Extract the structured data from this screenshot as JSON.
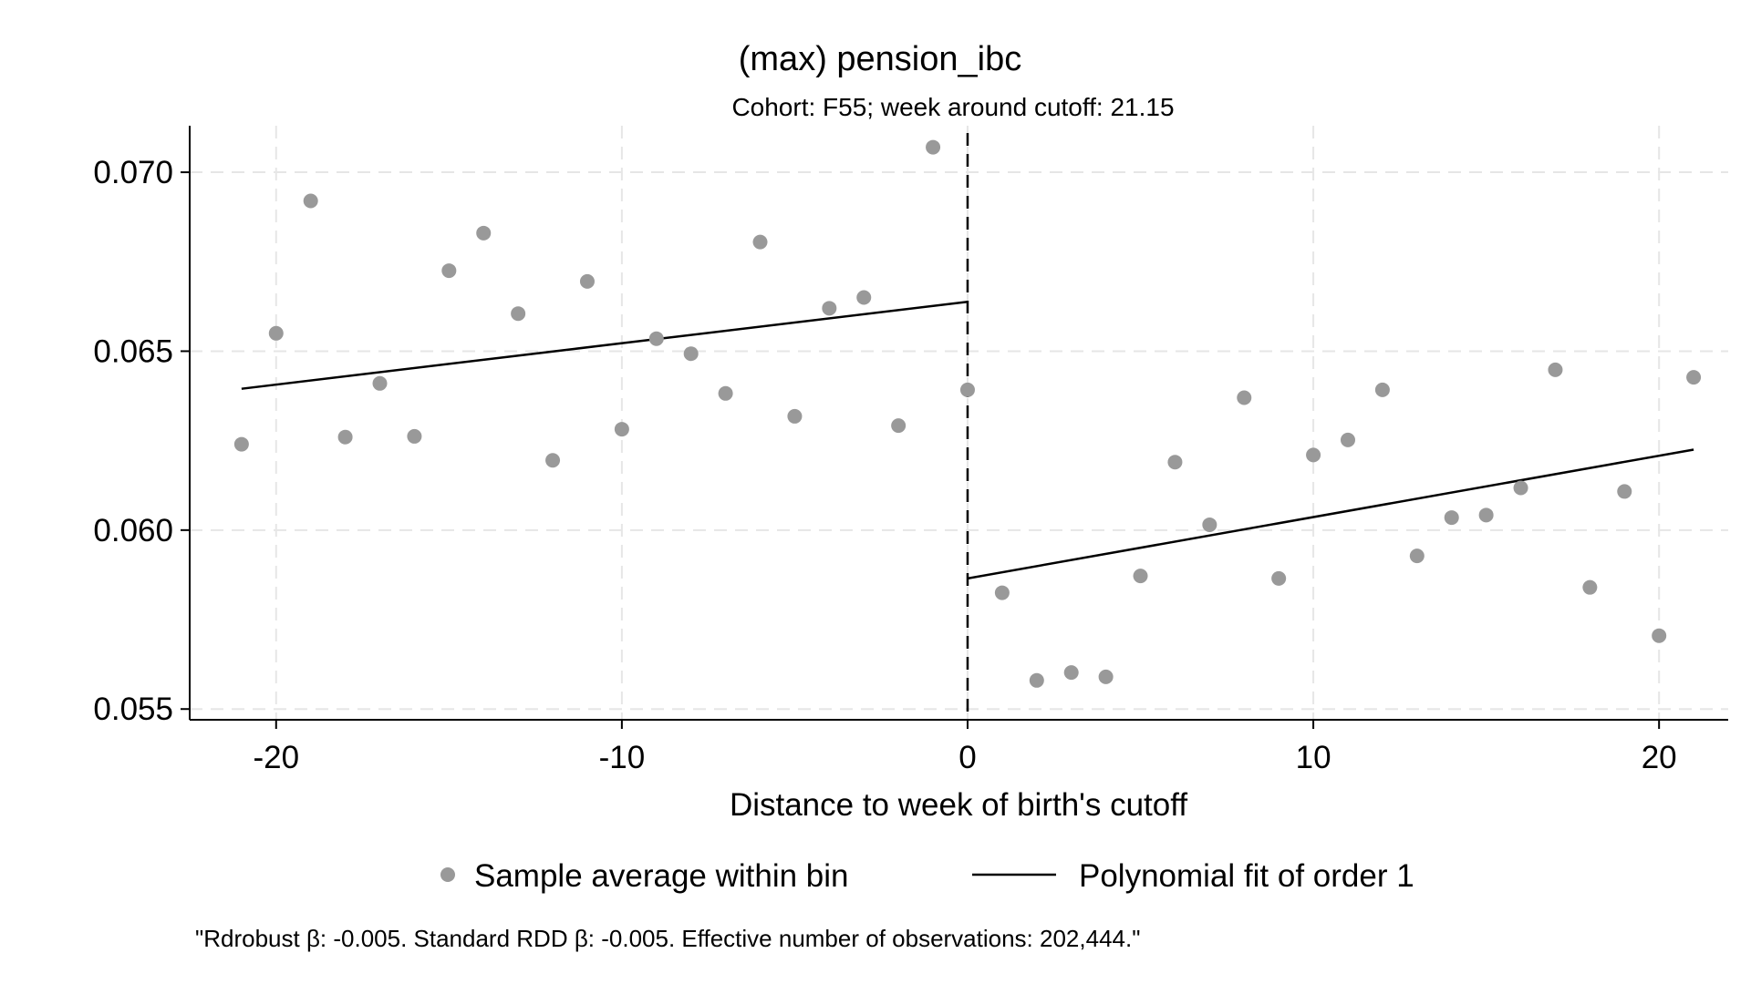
{
  "chart_data": {
    "type": "scatter",
    "title": "(max) pension_ibc",
    "subtitle": "Cohort: F55; week around cutoff: 21.15",
    "xlabel": "Distance to week of birth's cutoff",
    "ylabel": "",
    "xlim": [
      -22.5,
      22
    ],
    "ylim": [
      0.0547,
      0.0713
    ],
    "xticks": [
      -20,
      -10,
      0,
      10,
      20
    ],
    "xtick_labels": [
      "-20",
      "-10",
      "0",
      "10",
      "20"
    ],
    "yticks": [
      0.055,
      0.06,
      0.065,
      0.07
    ],
    "ytick_labels": [
      "0.055",
      "0.060",
      "0.065",
      "0.070"
    ],
    "grid": true,
    "cutoff_x": 0,
    "legend_position": "bottom",
    "series": [
      {
        "name": "Sample average within bin",
        "kind": "scatter",
        "color": "#999999",
        "x": [
          -21,
          -20,
          -19,
          -18,
          -17,
          -16,
          -15,
          -14,
          -13,
          -12,
          -11,
          -10,
          -9,
          -8,
          -7,
          -6,
          -5,
          -4,
          -3,
          -2,
          -1,
          0,
          1,
          2,
          3,
          4,
          5,
          6,
          7,
          8,
          9,
          10,
          11,
          12,
          13,
          14,
          15,
          16,
          17,
          18,
          19,
          20,
          21
        ],
        "y": [
          0.0624,
          0.0655,
          0.0692,
          0.0626,
          0.0641,
          0.06262,
          0.06725,
          0.0683,
          0.06605,
          0.06195,
          0.06695,
          0.06282,
          0.06535,
          0.06493,
          0.06382,
          0.06805,
          0.06318,
          0.0662,
          0.0665,
          0.06292,
          0.0707,
          0.06392,
          0.05825,
          0.0558,
          0.05602,
          0.0559,
          0.05872,
          0.0619,
          0.06015,
          0.0637,
          0.05865,
          0.0621,
          0.06252,
          0.06392,
          0.05928,
          0.06035,
          0.06042,
          0.06118,
          0.06448,
          0.0584,
          0.06108,
          0.05705,
          0.06427
        ]
      },
      {
        "name": "Polynomial fit of order 1",
        "kind": "line",
        "color": "#000000",
        "segments": [
          {
            "x": [
              -21,
              0
            ],
            "y": [
              0.06395,
              0.06638
            ]
          },
          {
            "x": [
              0,
              21
            ],
            "y": [
              0.05865,
              0.06225
            ]
          }
        ]
      }
    ],
    "note": "\"Rdrobust β: -0.005. Standard RDD β: -0.005. Effective number of observations: 202,444.\""
  }
}
